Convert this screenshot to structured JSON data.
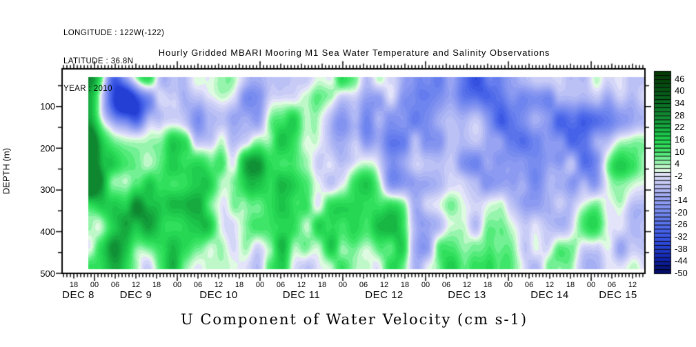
{
  "meta": {
    "longitude": "LONGITUDE : 122W(-122)",
    "latitude": "LATITUDE : 36.8N",
    "year": "YEAR : 2010"
  },
  "title": "Hourly Gridded MBARI Mooring M1 Sea Water Temperature and Salinity Observations",
  "bottom_title": "U Component of Water Velocity (cm s-1)",
  "chart_data": {
    "type": "heatmap",
    "title": "Hourly Gridded MBARI Mooring M1 Sea Water Temperature and Salinity Observations",
    "variable": "U Component of Water Velocity (cm s-1)",
    "x_axis": {
      "kind": "time",
      "start_visible": "DEC 8 ~15:00 2010",
      "end_visible": "DEC 15 ~15:30 2010",
      "minor_tick_interval_hours": 1,
      "labeled_tick_interval_hours": 6,
      "hour_tick_labels": [
        "18",
        "00",
        "06",
        "12",
        "18",
        "00",
        "06",
        "12",
        "18",
        "00",
        "06",
        "12",
        "18",
        "00",
        "06",
        "12",
        "18",
        "00",
        "06",
        "12",
        "18",
        "00",
        "06",
        "12",
        "18",
        "00",
        "06",
        "12"
      ],
      "date_labels": [
        "DEC 8",
        "DEC 9",
        "DEC 10",
        "DEC 11",
        "DEC 12",
        "DEC 13",
        "DEC 14",
        "DEC 15"
      ]
    },
    "y_axis": {
      "label": "DEPTH (m)",
      "ticks": [
        100,
        200,
        300,
        400,
        500
      ],
      "minor_step": 50,
      "top_m": 9.5,
      "bottom_m": 500,
      "direction": "depth increases downward"
    },
    "colorbar": {
      "min": -50,
      "max": 50,
      "cell_step": 2,
      "label_step": 6,
      "labels": [
        "46",
        "40",
        "34",
        "28",
        "22",
        "16",
        "10",
        "4",
        "-2",
        "-8",
        "-14",
        "-20",
        "-26",
        "-32",
        "-38",
        "-44",
        "-50"
      ],
      "positive_color_family": "greens (dark green = strong positive)",
      "negative_color_family": "blues (dark navy = strong negative)",
      "palette_anchors": [
        {
          "v": 50,
          "c": [
            0,
            55,
            0
          ]
        },
        {
          "v": 42,
          "c": [
            5,
            80,
            18
          ]
        },
        {
          "v": 34,
          "c": [
            10,
            110,
            35
          ]
        },
        {
          "v": 26,
          "c": [
            18,
            150,
            55
          ]
        },
        {
          "v": 20,
          "c": [
            25,
            190,
            70
          ]
        },
        {
          "v": 14,
          "c": [
            40,
            220,
            85
          ]
        },
        {
          "v": 10,
          "c": [
            70,
            232,
            110
          ]
        },
        {
          "v": 6,
          "c": [
            130,
            242,
            160
          ]
        },
        {
          "v": 3,
          "c": [
            190,
            248,
            200
          ]
        },
        {
          "v": 0.8,
          "c": [
            225,
            250,
            228
          ]
        },
        {
          "v": -0.8,
          "c": [
            228,
            228,
            250
          ]
        },
        {
          "v": -4,
          "c": [
            205,
            208,
            247
          ]
        },
        {
          "v": -9,
          "c": [
            175,
            183,
            244
          ]
        },
        {
          "v": -15,
          "c": [
            140,
            155,
            241
          ]
        },
        {
          "v": -22,
          "c": [
            105,
            128,
            238
          ]
        },
        {
          "v": -29,
          "c": [
            70,
            98,
            232
          ]
        },
        {
          "v": -36,
          "c": [
            40,
            68,
            218
          ]
        },
        {
          "v": -43,
          "c": [
            15,
            35,
            170
          ]
        },
        {
          "v": -50,
          "c": [
            2,
            10,
            95
          ]
        }
      ]
    },
    "field_appearance": {
      "description": "Smooth shaded depth-time section of eastward water velocity; values roughly between -34 and +30 cm/s; reproduced procedurally since individual grid values are not labeled in the image.",
      "seed": 7,
      "value_range": [
        -36,
        30
      ],
      "notable_features": [
        "strong negative (blue) patch near surface late DEC 8 through DEC 9 at ~50-180 m",
        "broadly positive (green) flow below ~150 m during DEC 8-11",
        "alternating narrow vertical bands of positive and negative velocity through the whole record",
        "more negative (lavender-blue) shading in upper layers from DEC 11 onward",
        "data region starts slightly inside the left axis and slightly below the top axis"
      ]
    }
  }
}
